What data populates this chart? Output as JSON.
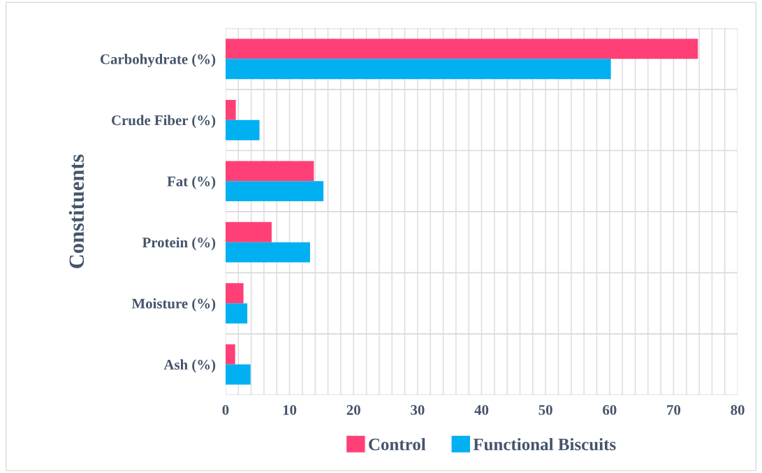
{
  "chart_data": {
    "type": "bar",
    "orientation": "horizontal",
    "ylabel": "Constituents",
    "categories": [
      "Carbohydrate (%)",
      "Crude Fiber (%)",
      "Fat (%)",
      "Protein (%)",
      "Moisture (%)",
      "Ash (%)"
    ],
    "series": [
      {
        "name": "Control",
        "color": "#ff4077",
        "values": [
          73.8,
          1.6,
          13.8,
          7.2,
          2.8,
          1.5
        ]
      },
      {
        "name": "Functional Biscuits",
        "color": "#00b0f0",
        "values": [
          60.2,
          5.3,
          15.3,
          13.2,
          3.4,
          3.9
        ]
      }
    ],
    "xlim": [
      0,
      80
    ],
    "xticks": [
      0,
      {
        "value": 2,
        "label": null
      },
      {
        "value": 4,
        "label": null
      },
      {
        "value": 6,
        "label": null
      },
      {
        "value": 8,
        "label": null
      },
      10,
      {
        "value": 12,
        "label": null
      },
      {
        "value": 14,
        "label": null
      },
      {
        "value": 16,
        "label": null
      },
      {
        "value": 18,
        "label": null
      },
      20,
      {
        "value": 22,
        "label": null
      },
      {
        "value": 24,
        "label": null
      },
      {
        "value": 26,
        "label": null
      },
      {
        "value": 28,
        "label": null
      },
      30,
      {
        "value": 32,
        "label": null
      },
      {
        "value": 34,
        "label": null
      },
      {
        "value": 36,
        "label": null
      },
      {
        "value": 38,
        "label": null
      },
      40,
      {
        "value": 42,
        "label": null
      },
      {
        "value": 44,
        "label": null
      },
      {
        "value": 46,
        "label": null
      },
      {
        "value": 48,
        "label": null
      },
      50,
      {
        "value": 52,
        "label": null
      },
      {
        "value": 54,
        "label": null
      },
      {
        "value": 56,
        "label": null
      },
      {
        "value": 58,
        "label": null
      },
      60,
      {
        "value": 62,
        "label": null
      },
      {
        "value": 64,
        "label": null
      },
      {
        "value": 66,
        "label": null
      },
      {
        "value": 68,
        "label": null
      },
      70,
      {
        "value": 72,
        "label": null
      },
      {
        "value": 74,
        "label": null
      },
      {
        "value": 76,
        "label": null
      },
      {
        "value": 78,
        "label": null
      },
      80
    ],
    "grid": true,
    "legend": "bottom"
  }
}
